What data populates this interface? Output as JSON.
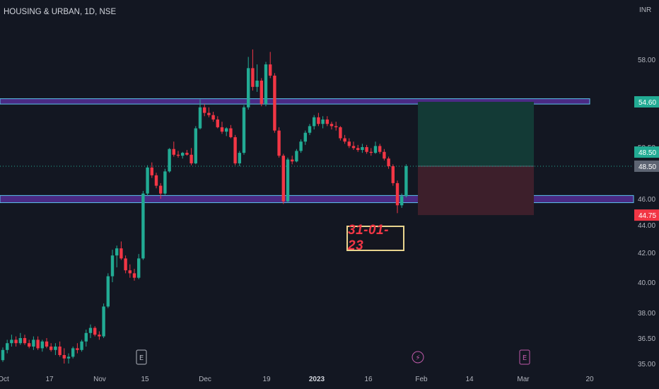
{
  "header": {
    "title": "HOUSING & URBAN, 1D, NSE",
    "currency": "INR"
  },
  "annotation": "31-01-23",
  "colors": {
    "bg": "#131722",
    "up": "#22ab94",
    "down": "#f23645",
    "zone_fill": "#4a2a84",
    "zone_border": "#5bc0eb",
    "profit_fill": "#133a36",
    "loss_fill": "#3d1f2b",
    "target": "#22ab94",
    "stop": "#f23645",
    "annotation_border": "#e8d48e",
    "annotation_text": "#f23645"
  },
  "chart_data": {
    "type": "candlestick",
    "title": "HOUSING & URBAN, 1D, NSE",
    "y_axis": {
      "unit": "INR",
      "range": [
        35.0,
        60.5
      ],
      "ticks": [
        "35.00",
        "36.50",
        "38.00",
        "40.00",
        "42.00",
        "44.00",
        "46.00",
        "48.50",
        "50.50",
        "54.60",
        "58.00"
      ]
    },
    "x_axis": {
      "ticks": [
        "Oct",
        "17",
        "Nov",
        "15",
        "Dec",
        "19",
        "2023",
        "16",
        "Feb",
        "14",
        "Mar",
        "20"
      ]
    },
    "price_labels": [
      {
        "value": "54.60",
        "kind": "target"
      },
      {
        "value": "48.50",
        "kind": "last_price"
      },
      {
        "value": "48.50",
        "kind": "entry"
      },
      {
        "value": "44.75",
        "kind": "stop"
      }
    ],
    "zones": [
      {
        "name": "resistance zone",
        "low": 54.4,
        "high": 54.85
      },
      {
        "name": "support zone",
        "low": 45.7,
        "high": 46.25
      }
    ],
    "position": {
      "entry": 48.5,
      "target": 54.6,
      "stop": 44.75
    },
    "event_markers": [
      {
        "label": "E",
        "date": "15 Nov"
      },
      {
        "label": "⚡",
        "date": "31 Jan"
      },
      {
        "label": "E",
        "date": "28 Feb"
      }
    ],
    "candles": [
      [
        35.2,
        35.95,
        35.1,
        35.8
      ],
      [
        35.8,
        36.4,
        35.6,
        36.2
      ],
      [
        36.2,
        36.7,
        36.0,
        36.4
      ],
      [
        36.4,
        36.6,
        36.0,
        36.2
      ],
      [
        36.2,
        36.8,
        36.1,
        36.5
      ],
      [
        36.5,
        36.7,
        36.1,
        36.2
      ],
      [
        36.2,
        36.4,
        35.9,
        36.0
      ],
      [
        36.0,
        36.6,
        35.8,
        36.4
      ],
      [
        36.4,
        36.6,
        35.8,
        35.9
      ],
      [
        35.9,
        36.4,
        35.7,
        36.3
      ],
      [
        36.3,
        36.5,
        35.9,
        36.0
      ],
      [
        36.0,
        36.2,
        35.7,
        35.8
      ],
      [
        35.8,
        36.2,
        35.5,
        36.0
      ],
      [
        36.0,
        36.3,
        35.4,
        35.5
      ],
      [
        35.5,
        35.9,
        35.0,
        35.3
      ],
      [
        35.3,
        35.6,
        35.0,
        35.4
      ],
      [
        35.4,
        36.0,
        35.3,
        35.9
      ],
      [
        35.9,
        36.2,
        35.6,
        35.8
      ],
      [
        35.8,
        36.4,
        35.7,
        36.3
      ],
      [
        36.3,
        37.0,
        36.0,
        36.8
      ],
      [
        36.8,
        37.3,
        36.5,
        37.1
      ],
      [
        37.1,
        37.2,
        36.6,
        36.7
      ],
      [
        36.7,
        36.9,
        36.4,
        36.6
      ],
      [
        36.6,
        38.6,
        36.5,
        38.4
      ],
      [
        38.4,
        40.6,
        38.3,
        40.4
      ],
      [
        40.4,
        42.2,
        40.0,
        41.8
      ],
      [
        41.8,
        42.5,
        41.0,
        42.3
      ],
      [
        42.3,
        42.8,
        41.5,
        41.6
      ],
      [
        41.6,
        41.8,
        40.6,
        40.8
      ],
      [
        40.8,
        41.2,
        40.3,
        40.6
      ],
      [
        40.6,
        40.9,
        40.1,
        40.3
      ],
      [
        40.3,
        41.9,
        40.2,
        41.6
      ],
      [
        41.6,
        46.6,
        41.5,
        46.4
      ],
      [
        46.4,
        48.6,
        46.2,
        48.4
      ],
      [
        48.4,
        48.9,
        47.6,
        47.8
      ],
      [
        47.8,
        48.0,
        46.8,
        47.0
      ],
      [
        47.0,
        47.2,
        46.0,
        46.4
      ],
      [
        46.4,
        48.3,
        46.3,
        48.1
      ],
      [
        48.1,
        50.4,
        48.0,
        50.3
      ],
      [
        50.3,
        51.0,
        49.5,
        49.7
      ],
      [
        49.7,
        50.1,
        49.4,
        49.6
      ],
      [
        49.6,
        50.0,
        49.3,
        49.9
      ],
      [
        49.9,
        50.2,
        49.6,
        49.7
      ],
      [
        49.7,
        50.4,
        48.6,
        48.8
      ],
      [
        48.8,
        52.4,
        48.7,
        52.2
      ],
      [
        52.2,
        54.8,
        52.1,
        54.1
      ],
      [
        54.1,
        54.4,
        53.3,
        53.6
      ],
      [
        53.6,
        54.1,
        53.2,
        53.4
      ],
      [
        53.4,
        53.7,
        52.8,
        53.0
      ],
      [
        53.0,
        53.3,
        52.2,
        52.3
      ],
      [
        52.3,
        52.8,
        51.7,
        51.9
      ],
      [
        51.9,
        52.3,
        51.5,
        52.2
      ],
      [
        52.2,
        52.5,
        51.3,
        51.4
      ],
      [
        51.4,
        51.6,
        48.6,
        48.8
      ],
      [
        48.8,
        50.1,
        48.5,
        49.9
      ],
      [
        49.9,
        54.3,
        49.7,
        54.1
      ],
      [
        54.1,
        58.2,
        53.9,
        57.3
      ],
      [
        57.3,
        58.8,
        55.5,
        55.8
      ],
      [
        55.8,
        57.6,
        55.4,
        56.3
      ],
      [
        56.3,
        56.5,
        54.2,
        54.4
      ],
      [
        54.4,
        57.8,
        54.2,
        57.6
      ],
      [
        57.6,
        58.6,
        56.5,
        56.7
      ],
      [
        56.7,
        56.9,
        51.8,
        52.0
      ],
      [
        52.0,
        52.3,
        49.4,
        49.6
      ],
      [
        49.6,
        49.8,
        45.6,
        45.8
      ],
      [
        45.8,
        49.4,
        45.7,
        49.2
      ],
      [
        49.2,
        49.6,
        48.7,
        49.0
      ],
      [
        49.0,
        50.3,
        48.9,
        50.1
      ],
      [
        50.1,
        51.2,
        49.9,
        51.0
      ],
      [
        51.0,
        52.0,
        50.7,
        51.8
      ],
      [
        51.8,
        52.6,
        51.6,
        52.4
      ],
      [
        52.4,
        53.4,
        52.1,
        53.2
      ],
      [
        53.2,
        53.6,
        52.4,
        52.6
      ],
      [
        52.6,
        53.3,
        52.2,
        53.0
      ],
      [
        53.0,
        53.3,
        52.4,
        52.6
      ],
      [
        52.6,
        52.8,
        52.1,
        52.4
      ],
      [
        52.4,
        52.8,
        52.0,
        52.3
      ],
      [
        52.3,
        52.4,
        51.1,
        51.3
      ],
      [
        51.3,
        51.6,
        50.8,
        51.0
      ],
      [
        51.0,
        51.3,
        50.4,
        50.6
      ],
      [
        50.6,
        51.0,
        50.2,
        50.4
      ],
      [
        50.4,
        50.7,
        50.0,
        50.2
      ],
      [
        50.2,
        50.8,
        49.9,
        50.5
      ],
      [
        50.5,
        50.7,
        49.8,
        50.0
      ],
      [
        50.0,
        50.4,
        49.6,
        49.9
      ],
      [
        49.9,
        51.0,
        49.8,
        50.6
      ],
      [
        50.6,
        50.8,
        49.8,
        50.0
      ],
      [
        50.0,
        50.3,
        49.1,
        49.3
      ],
      [
        49.3,
        49.5,
        48.3,
        48.5
      ],
      [
        48.5,
        48.7,
        47.0,
        47.2
      ],
      [
        47.2,
        47.4,
        44.9,
        45.5
      ],
      [
        45.5,
        46.4,
        45.3,
        46.2
      ],
      [
        46.2,
        48.7,
        46.1,
        48.5
      ]
    ],
    "candle_count": 93
  }
}
